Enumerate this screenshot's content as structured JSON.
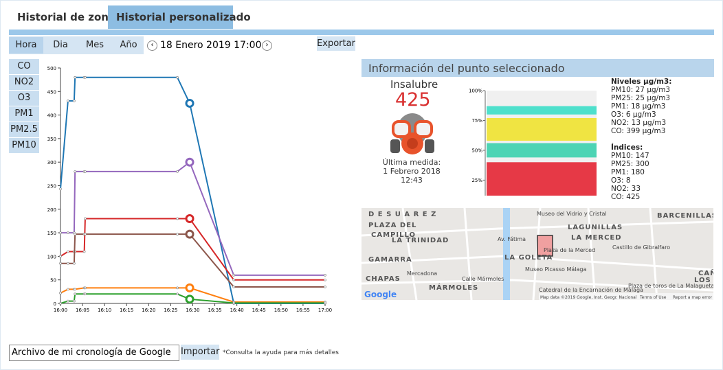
{
  "tabs": [
    "Historial de zona",
    "Historial personalizado"
  ],
  "toolbar": {
    "periods": [
      "Hora",
      "Dia",
      "Mes",
      "Año"
    ],
    "date": "18 Enero 2019 17:00",
    "export": "Exportar"
  },
  "pollutants": [
    "CO",
    "NO2",
    "O3",
    "PM1",
    "PM2.5",
    "PM10"
  ],
  "chart_data": [
    {
      "type": "line",
      "xlim": [
        0,
        60
      ],
      "xticks": [
        {
          "value": 0,
          "label": "16:00"
        },
        {
          "value": 5,
          "label": "16:05"
        },
        {
          "value": 10,
          "label": "16:10"
        },
        {
          "value": 15,
          "label": "16:15"
        },
        {
          "value": 20,
          "label": "16:20"
        },
        {
          "value": 25,
          "label": "16:25"
        },
        {
          "value": 30,
          "label": "16:30"
        },
        {
          "value": 35,
          "label": "16:35"
        },
        {
          "value": 40,
          "label": "16:40"
        },
        {
          "value": 45,
          "label": "16:45"
        },
        {
          "value": 50,
          "label": "16:50"
        },
        {
          "value": 55,
          "label": "16:55"
        },
        {
          "value": 60,
          "label": "17:00"
        }
      ],
      "ylim": [
        0,
        500
      ],
      "yticks": [
        0,
        50,
        100,
        150,
        200,
        250,
        300,
        350,
        400,
        450,
        500
      ],
      "x": [
        0,
        1.7,
        3.1,
        3.3,
        5.4,
        5.6,
        26.5,
        29.3,
        39.3,
        60
      ],
      "series": [
        {
          "color": "#1f77b4",
          "values": [
            243,
            430,
            430,
            480,
            480,
            480,
            480,
            425,
            0,
            0
          ]
        },
        {
          "color": "#9467bd",
          "values": [
            150,
            150,
            150,
            280,
            280,
            280,
            280,
            300,
            60,
            60
          ]
        },
        {
          "color": "#d62728",
          "values": [
            100,
            110,
            110,
            110,
            110,
            180,
            180,
            180,
            50,
            50
          ]
        },
        {
          "color": "#8c564b",
          "values": [
            85,
            85,
            85,
            147,
            147,
            147,
            147,
            147,
            35,
            35
          ]
        },
        {
          "color": "#ff7f0e",
          "values": [
            22,
            30,
            30,
            30,
            33,
            33,
            33,
            33,
            3,
            3
          ]
        },
        {
          "color": "#2ca02c",
          "values": [
            0,
            5,
            5,
            20,
            20,
            20,
            20,
            9,
            1,
            1
          ]
        }
      ]
    },
    {
      "type": "gauge",
      "ylim": [
        12,
        100
      ],
      "yticks": [
        {
          "value": 100,
          "label": "100%"
        },
        {
          "value": 75,
          "label": "75%"
        },
        {
          "value": 50,
          "label": "50%"
        },
        {
          "value": 25,
          "label": "25%"
        }
      ],
      "segments": [
        {
          "color": "#e63946",
          "range": [
            12,
            40
          ]
        },
        {
          "color": "#4dd4b4",
          "range": [
            44,
            56
          ]
        },
        {
          "color": "#f0e442",
          "range": [
            58,
            77
          ]
        },
        {
          "color": "#4ee0cc",
          "range": [
            80,
            87
          ]
        }
      ]
    }
  ],
  "info": {
    "title": "Información del punto seleccionado",
    "status": "Insalubre",
    "index": "425",
    "last_label": "Última medida:",
    "last_date": "1 Febrero 2018",
    "last_time": "12:43",
    "levels_title": "Niveles µg/m3:",
    "levels": [
      "PM10: 27 µg/m3",
      "PM25: 25 µg/m3",
      "PM1: 18 µg/m3",
      "O3: 6 µg/m3",
      "NO2: 13 µg/m3",
      "CO: 399 µg/m3"
    ],
    "indices_title": "Índices:",
    "indices": [
      "PM10: 147",
      "PM25: 300",
      "PM1: 180",
      "O3: 8",
      "NO2: 33",
      "CO: 425"
    ]
  },
  "map": {
    "labels": [
      "D E  S U A R E Z",
      "Museo del Vidrio y Cristal",
      "BARCENILLAS",
      "PLAZA DEL",
      "CAMPILLO",
      "LA TRINIDAD",
      "LAGUNILLAS",
      "LA MERCED",
      "Plaza de la Merced",
      "Castillo de Gibralfaro",
      "GAMARRA",
      "LA GOLETA",
      "Museo Picasso Málaga",
      "CHAPAS",
      "Mercadona",
      "Calle Mármoles",
      "MÁRMOLES",
      "Catedral de la Encarnación de Málaga",
      "Plaza de toros de La Malagueta",
      "Av. Fátima",
      "CAÑA",
      "LOS ID"
    ],
    "logo": "Google",
    "attribution": "Map data ©2019 Google, Inst. Geogr. Nacional",
    "terms": "Terms of Use",
    "report": "Report a map error"
  },
  "footer": {
    "file": "Archivo de mi cronología de Google",
    "import": "Importar",
    "note": "*Consulta la ayuda para más detalles"
  }
}
